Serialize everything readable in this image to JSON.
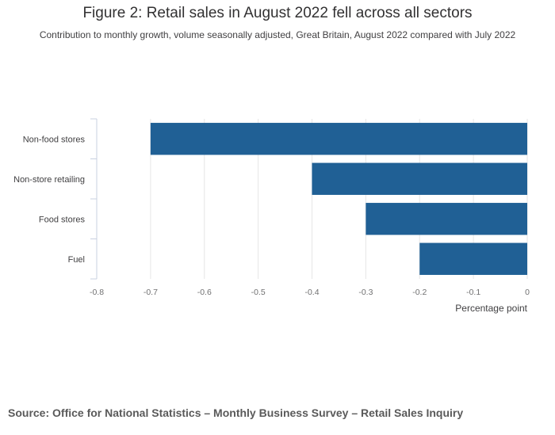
{
  "header": {
    "title": "Figure 2: Retail sales in August 2022 fell across all sectors",
    "subtitle": "Contribution to monthly growth, volume seasonally adjusted, Great Britain, August 2022 compared with July 2022"
  },
  "chart_data": {
    "type": "bar",
    "orientation": "horizontal",
    "categories": [
      "Non-food stores",
      "Non-store retailing",
      "Food stores",
      "Fuel"
    ],
    "values": [
      -0.7,
      -0.4,
      -0.3,
      -0.2
    ],
    "xlabel": "Percentage point",
    "ylabel": "",
    "xlim": [
      -0.8,
      0
    ],
    "xticks": [
      "-0.8",
      "-0.7",
      "-0.6",
      "-0.5",
      "-0.4",
      "-0.3",
      "-0.2",
      "-0.1",
      "0"
    ],
    "grid": true,
    "bar_color": "#206095",
    "grid_color": "#e6e6e6",
    "axis_color": "#c8d0e0"
  },
  "footer": {
    "source": "Source: Office for National Statistics – Monthly Business Survey – Retail Sales Inquiry"
  }
}
